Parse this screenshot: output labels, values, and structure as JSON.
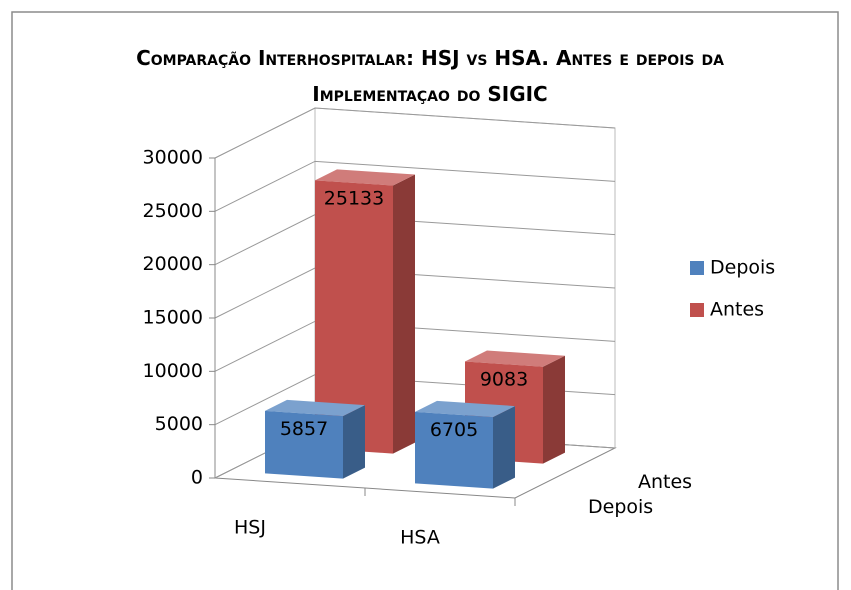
{
  "chart_data": {
    "type": "bar3d",
    "title": "Comparação Interhospitalar: HSJ vs HSA. Antes e depois da Implementaçao do SIGIC",
    "categories": [
      "HSJ",
      "HSA"
    ],
    "series": [
      {
        "name": "Depois",
        "color": "#4f81bd",
        "values": [
          5857,
          6705
        ]
      },
      {
        "name": "Antes",
        "color": "#c0504d",
        "values": [
          25133,
          9083
        ]
      }
    ],
    "ylim": [
      0,
      30000
    ],
    "yticks": [
      0,
      5000,
      10000,
      15000,
      20000,
      25000,
      30000
    ],
    "grid": true,
    "legend": "right"
  }
}
